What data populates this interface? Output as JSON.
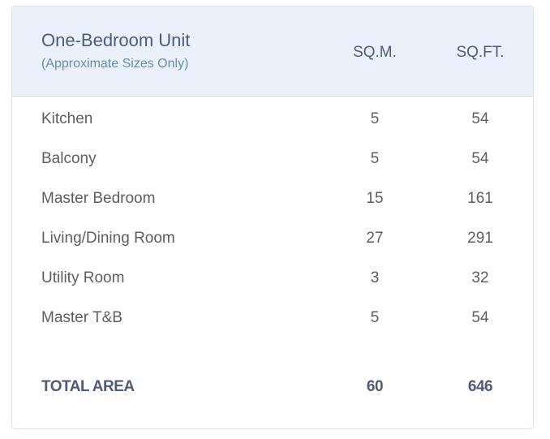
{
  "header": {
    "title": "One-Bedroom Unit",
    "subtitle": "(Approximate Sizes Only)",
    "col_sqm": "SQ.M.",
    "col_sqft": "SQ.FT."
  },
  "rows": [
    {
      "room": "Kitchen",
      "sqm": "5",
      "sqft": "54"
    },
    {
      "room": "Balcony",
      "sqm": "5",
      "sqft": "54"
    },
    {
      "room": "Master Bedroom",
      "sqm": "15",
      "sqft": "161"
    },
    {
      "room": "Living/Dining Room",
      "sqm": "27",
      "sqft": "291"
    },
    {
      "room": "Utility Room",
      "sqm": "3",
      "sqft": "32"
    },
    {
      "room": "Master T&B",
      "sqm": "5",
      "sqft": "54"
    }
  ],
  "total": {
    "label": "TOTAL AREA",
    "sqm": "60",
    "sqft": "646"
  },
  "colors": {
    "header_bg": "#eaf1fb",
    "title": "#4f5b76",
    "subtitle": "#6a89b0",
    "text": "#5d5d5d"
  }
}
